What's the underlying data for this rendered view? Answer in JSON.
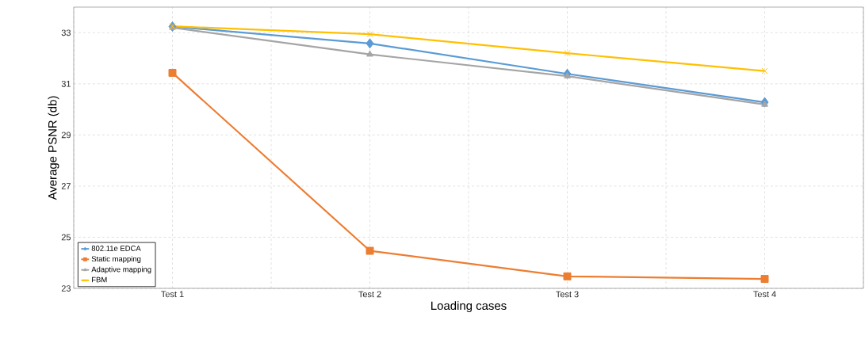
{
  "chart_data": {
    "type": "line",
    "xlabel": "Loading cases",
    "ylabel": "Average PSNR (db)",
    "categories": [
      "Test 1",
      "Test 2",
      "Test 3",
      "Test 4"
    ],
    "ylim": [
      23,
      34
    ],
    "yticks": [
      23,
      25,
      27,
      29,
      31,
      33
    ],
    "grid": true,
    "legend": "bottom left",
    "line_style": "solid",
    "series": [
      {
        "name": "802.11e EDCA",
        "color": "#5b9bd5",
        "marker": "diamond",
        "values": [
          33.24,
          32.58,
          31.39,
          30.28
        ]
      },
      {
        "name": "Static mapping",
        "color": "#ed7d31",
        "marker": "square",
        "values": [
          31.43,
          24.47,
          23.47,
          23.37
        ]
      },
      {
        "name": "Adaptive mapping",
        "color": "#a5a5a5",
        "marker": "triangle",
        "values": [
          33.2,
          32.15,
          31.3,
          30.19
        ]
      },
      {
        "name": "FBM",
        "color": "#ffc000",
        "marker": "cross",
        "values": [
          33.25,
          32.94,
          32.2,
          31.5
        ]
      }
    ]
  }
}
